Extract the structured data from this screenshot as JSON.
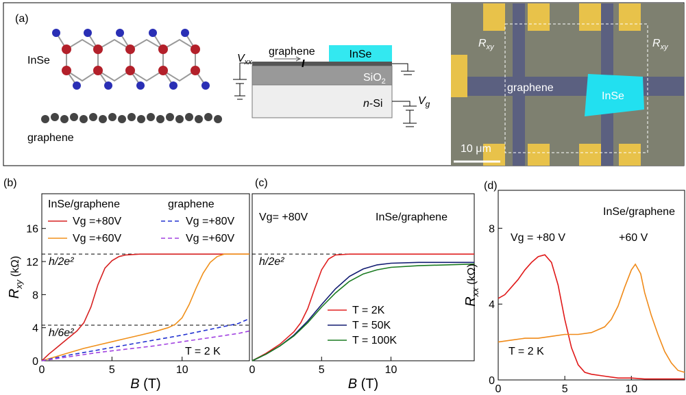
{
  "panel_a": {
    "label": "(a)",
    "lattice": {
      "top": "InSe",
      "bottom": "graphene"
    },
    "device": {
      "vxx": {
        "symbol": "V",
        "sub": "xx"
      },
      "graphene": "graphene",
      "inse": "InSe",
      "current": "I",
      "sio2": {
        "symbol": "SiO",
        "sub": "2"
      },
      "nsi": {
        "prefix": "n",
        "text": "-Si"
      },
      "vg": {
        "symbol": "V",
        "sub": "g"
      }
    },
    "micrograph": {
      "rxy_left": {
        "symbol": "R",
        "sub": "xy"
      },
      "rxy_right": {
        "symbol": "R",
        "sub": "xy"
      },
      "graphene": "graphene",
      "inse": "InSe",
      "scale": "10 μm"
    }
  },
  "chart_data": [
    {
      "type": "line",
      "panel": "(b)",
      "xlabel": {
        "symbol": "B",
        "unit": " (T)"
      },
      "ylabel": {
        "symbol": "R",
        "sub": "xy",
        "unit": " (kΩ)"
      },
      "xlim": [
        0,
        14.8
      ],
      "ylim": [
        0,
        20.2
      ],
      "xticks": [
        0,
        5,
        10
      ],
      "yticks": [
        0,
        4,
        8,
        12,
        16
      ],
      "reference_lines": [
        {
          "value": 12.9,
          "label": "h/2e²"
        },
        {
          "value": 4.3,
          "label": "h/6e²"
        }
      ],
      "legend_titles": [
        "InSe/graphene",
        "graphene"
      ],
      "annotations": [
        "T = 2 K"
      ],
      "series": [
        {
          "name": "Vg =+80V",
          "color": "#d62020",
          "dash": false,
          "x": [
            0,
            0.5,
            1,
            1.5,
            2,
            2.5,
            3,
            3.5,
            4,
            4.5,
            5,
            5.5,
            6,
            7,
            8,
            9,
            10,
            11,
            12,
            13,
            14,
            14.8
          ],
          "values": [
            0,
            0.8,
            1.5,
            2.2,
            2.9,
            3.6,
            4.6,
            6.5,
            9.2,
            11.2,
            12.1,
            12.6,
            12.8,
            12.9,
            12.9,
            12.9,
            12.9,
            12.9,
            12.9,
            12.9,
            12.9,
            12.9
          ]
        },
        {
          "name": "Vg =+60V",
          "color": "#f0901a",
          "dash": false,
          "x": [
            0,
            1,
            2,
            3,
            4,
            5,
            6,
            7,
            8,
            9,
            9.5,
            10,
            10.5,
            11,
            11.5,
            12,
            12.5,
            13,
            14,
            14.8
          ],
          "values": [
            0,
            0.5,
            1,
            1.5,
            1.9,
            2.3,
            2.7,
            3.1,
            3.5,
            4.0,
            4.4,
            5.2,
            6.8,
            8.8,
            10.6,
            11.9,
            12.6,
            12.9,
            12.9,
            12.9
          ]
        },
        {
          "name": "Vg =+80V",
          "color": "#2030d0",
          "dash": true,
          "x": [
            0,
            2,
            4,
            6,
            8,
            10,
            12,
            14,
            14.8
          ],
          "values": [
            0,
            0.7,
            1.3,
            1.9,
            2.5,
            3.1,
            3.8,
            4.5,
            5.1
          ]
        },
        {
          "name": "Vg =+60V",
          "color": "#a040e0",
          "dash": true,
          "x": [
            0,
            2,
            4,
            6,
            8,
            10,
            12,
            14,
            14.8
          ],
          "values": [
            0,
            0.5,
            1,
            1.4,
            1.8,
            2.3,
            2.8,
            3.3,
            3.6
          ]
        }
      ]
    },
    {
      "type": "line",
      "panel": "(c)",
      "xlabel": {
        "symbol": "B",
        "unit": " (T)"
      },
      "xlim": [
        0,
        16
      ],
      "ylim": [
        0,
        20.2
      ],
      "xticks": [
        0,
        5,
        10
      ],
      "reference_lines": [
        {
          "value": 12.9,
          "label": "h/2e²"
        }
      ],
      "annotations": [
        "Vg= +80V",
        "InSe/graphene"
      ],
      "series": [
        {
          "name": "T = 2K",
          "color": "#e02020",
          "dash": false,
          "x": [
            0,
            1,
            2,
            3,
            3.5,
            4,
            4.5,
            5,
            5.5,
            6,
            7,
            8,
            10,
            12,
            14,
            16
          ],
          "values": [
            0,
            0.9,
            2,
            3.5,
            4.6,
            6.3,
            8.7,
            11,
            12.3,
            12.8,
            12.9,
            12.9,
            12.9,
            12.9,
            12.9,
            12.9
          ]
        },
        {
          "name": "T = 50K",
          "color": "#101a70",
          "dash": false,
          "x": [
            0,
            1,
            2,
            3,
            4,
            5,
            6,
            7,
            8,
            9,
            10,
            12,
            14,
            16
          ],
          "values": [
            0,
            0.8,
            1.8,
            3.1,
            4.8,
            6.8,
            8.7,
            10.2,
            11.1,
            11.6,
            11.8,
            11.9,
            11.9,
            11.9
          ]
        },
        {
          "name": "T = 100K",
          "color": "#1a7a20",
          "dash": false,
          "x": [
            0,
            1,
            2,
            3,
            4,
            5,
            6,
            7,
            8,
            9,
            10,
            12,
            14,
            16
          ],
          "values": [
            0,
            0.8,
            1.8,
            3.0,
            4.6,
            6.5,
            8.2,
            9.6,
            10.5,
            11,
            11.3,
            11.5,
            11.6,
            11.7
          ]
        }
      ]
    },
    {
      "type": "line",
      "panel": "(d)",
      "xlabel": {
        "symbol": "B",
        "unit": " (T)"
      },
      "ylabel": {
        "symbol": "R",
        "sub": "xx",
        "unit": " (kΩ)"
      },
      "xlim": [
        0,
        14
      ],
      "ylim": [
        0,
        10
      ],
      "xticks": [
        0,
        5,
        10
      ],
      "yticks": [
        0,
        4,
        8
      ],
      "annotations": [
        "Vg = +80 V",
        "+60 V",
        "InSe/graphene",
        "T = 2 K"
      ],
      "series": [
        {
          "color": "#e01818",
          "dash": false,
          "x": [
            0,
            0.5,
            1,
            1.5,
            2,
            2.5,
            3,
            3.5,
            4,
            4.5,
            5,
            5.5,
            6,
            6.5,
            7,
            8,
            9,
            10,
            11,
            12,
            13,
            14
          ],
          "values": [
            4.3,
            4.5,
            4.9,
            5.3,
            5.8,
            6.2,
            6.5,
            6.6,
            6.2,
            5.0,
            3.2,
            1.7,
            0.8,
            0.4,
            0.3,
            0.2,
            0.1,
            0.1,
            0.05,
            0.05,
            0.05,
            0.05
          ]
        },
        {
          "color": "#f08a18",
          "dash": false,
          "x": [
            0,
            1,
            2,
            3,
            4,
            5,
            6,
            7,
            8,
            8.5,
            9,
            9.5,
            10,
            10.3,
            10.7,
            11,
            11.5,
            12,
            12.5,
            13,
            13.5,
            14
          ],
          "values": [
            2.0,
            2.1,
            2.2,
            2.2,
            2.3,
            2.4,
            2.4,
            2.5,
            2.8,
            3.2,
            3.9,
            4.9,
            5.8,
            6.1,
            5.6,
            4.6,
            3.4,
            2.4,
            1.5,
            0.9,
            0.5,
            0.4
          ]
        }
      ]
    }
  ]
}
